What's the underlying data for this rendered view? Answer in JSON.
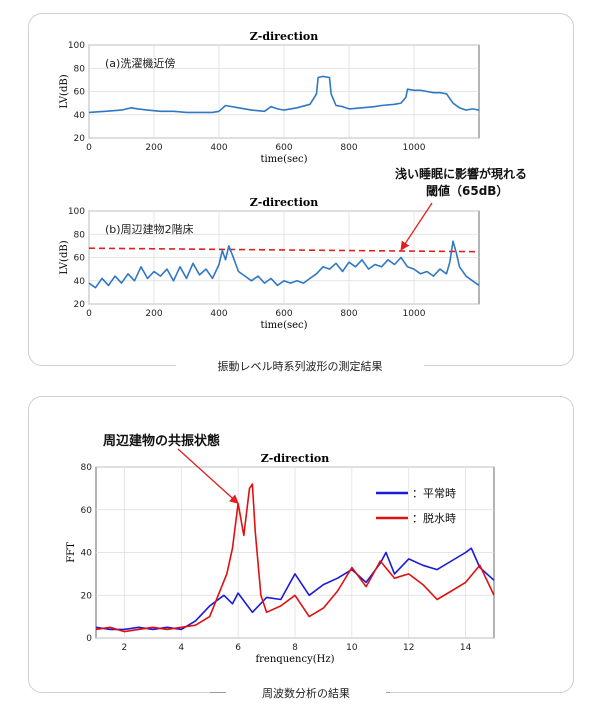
{
  "captions": {
    "top": "振動レベル時系列波形の測定結果",
    "bottom": "周波数分析の結果"
  },
  "annotations": {
    "threshold_line1": "浅い睡眠に影響が現れる",
    "threshold_line2": "閾値（65dB）",
    "resonance": "周辺建物の共振状態"
  },
  "chart_data": [
    {
      "type": "line",
      "title": "Z-direction",
      "panel_label": "(a)洗濯機近傍",
      "xlabel": "time(sec)",
      "ylabel": "LV(dB)",
      "xlim": [
        0,
        1200
      ],
      "ylim": [
        20,
        100
      ],
      "xticks": [
        0,
        200,
        400,
        600,
        800,
        1000
      ],
      "yticks": [
        20,
        40,
        60,
        80,
        100
      ],
      "grid": true,
      "color": "#2f78c4",
      "x": [
        0,
        50,
        100,
        130,
        150,
        180,
        220,
        260,
        300,
        340,
        380,
        400,
        420,
        460,
        500,
        540,
        560,
        580,
        600,
        640,
        680,
        700,
        705,
        720,
        740,
        745,
        760,
        780,
        800,
        840,
        880,
        900,
        940,
        960,
        975,
        980,
        1000,
        1020,
        1040,
        1060,
        1080,
        1100,
        1120,
        1140,
        1160,
        1180,
        1200
      ],
      "y": [
        42,
        43,
        44,
        46,
        45,
        44,
        43,
        43,
        42,
        42,
        42,
        43,
        48,
        46,
        44,
        43,
        47,
        45,
        44,
        46,
        49,
        58,
        72,
        73,
        72,
        58,
        48,
        47,
        45,
        46,
        47,
        48,
        49,
        50,
        55,
        62,
        61,
        61,
        60,
        59,
        59,
        58,
        50,
        46,
        44,
        45,
        44
      ]
    },
    {
      "type": "line",
      "title": "Z-direction",
      "panel_label": "(b)周辺建物2階床",
      "xlabel": "time(sec)",
      "ylabel": "LV(dB)",
      "xlim": [
        0,
        1200
      ],
      "ylim": [
        20,
        100
      ],
      "xticks": [
        0,
        200,
        400,
        600,
        800,
        1000
      ],
      "yticks": [
        20,
        40,
        60,
        80,
        100
      ],
      "grid": true,
      "color": "#2f78c4",
      "threshold": {
        "value_start": 68,
        "value_end": 65,
        "color": "#e01f1f"
      },
      "x": [
        0,
        20,
        40,
        60,
        80,
        100,
        120,
        140,
        160,
        180,
        200,
        220,
        240,
        260,
        280,
        300,
        320,
        340,
        360,
        380,
        400,
        410,
        420,
        430,
        440,
        460,
        480,
        500,
        520,
        540,
        560,
        580,
        600,
        620,
        640,
        660,
        680,
        700,
        720,
        740,
        760,
        780,
        800,
        820,
        840,
        860,
        880,
        900,
        920,
        940,
        960,
        980,
        1000,
        1020,
        1040,
        1060,
        1080,
        1100,
        1110,
        1120,
        1130,
        1140,
        1160,
        1180,
        1200
      ],
      "y": [
        38,
        34,
        42,
        36,
        44,
        38,
        46,
        40,
        52,
        42,
        48,
        44,
        50,
        40,
        52,
        42,
        55,
        45,
        50,
        42,
        54,
        66,
        58,
        70,
        63,
        48,
        44,
        40,
        44,
        38,
        42,
        36,
        40,
        38,
        40,
        38,
        42,
        46,
        52,
        50,
        55,
        48,
        56,
        52,
        58,
        50,
        54,
        52,
        58,
        54,
        60,
        52,
        50,
        46,
        48,
        44,
        50,
        46,
        56,
        74,
        64,
        52,
        44,
        40,
        36
      ]
    },
    {
      "type": "line",
      "title": "Z-direction",
      "xlabel": "frenquency(Hz)",
      "ylabel": "FFT",
      "xlim": [
        1,
        15
      ],
      "ylim": [
        0,
        80
      ],
      "xticks": [
        2,
        4,
        6,
        8,
        10,
        12,
        14
      ],
      "yticks": [
        0,
        20,
        40,
        60,
        80
      ],
      "grid": true,
      "legend_position": "top-right",
      "series": [
        {
          "name": "：平常時",
          "color": "#1a1adc",
          "x": [
            1,
            1.5,
            2,
            2.5,
            3,
            3.5,
            4,
            4.5,
            5,
            5.5,
            5.8,
            6,
            6.5,
            7,
            7.5,
            8,
            8.5,
            9,
            9.5,
            10,
            10.5,
            11,
            11.2,
            11.5,
            12,
            12.5,
            13,
            13.5,
            14,
            14.2,
            14.5,
            15
          ],
          "y": [
            5,
            4,
            4,
            5,
            4,
            5,
            4,
            8,
            15,
            20,
            16,
            21,
            12,
            19,
            18,
            30,
            20,
            25,
            28,
            32,
            26,
            35,
            40,
            30,
            37,
            34,
            32,
            36,
            40,
            42,
            33,
            27
          ]
        },
        {
          "name": "：脱水時",
          "color": "#e01010",
          "x": [
            1,
            1.5,
            2,
            2.5,
            3,
            3.5,
            4,
            4.5,
            5,
            5.3,
            5.6,
            5.8,
            6,
            6.2,
            6.4,
            6.5,
            6.6,
            6.8,
            7,
            7.5,
            8,
            8.5,
            9,
            9.5,
            10,
            10.5,
            11,
            11.5,
            12,
            12.5,
            13,
            13.5,
            14,
            14.5,
            15
          ],
          "y": [
            4,
            5,
            3,
            4,
            5,
            4,
            5,
            6,
            10,
            20,
            30,
            42,
            63,
            48,
            70,
            72,
            50,
            20,
            12,
            15,
            20,
            10,
            14,
            22,
            33,
            24,
            36,
            28,
            30,
            25,
            18,
            22,
            26,
            34,
            20
          ]
        }
      ]
    }
  ]
}
